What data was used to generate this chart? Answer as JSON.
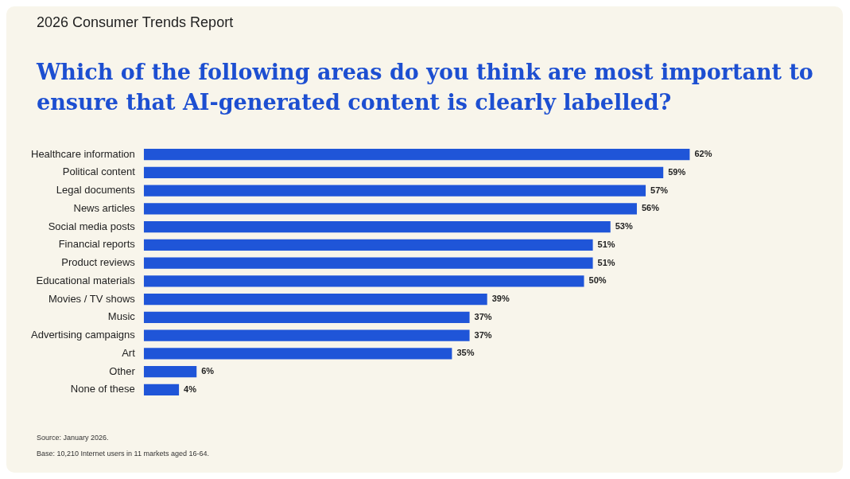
{
  "chart_data": {
    "type": "bar",
    "orientation": "horizontal",
    "title": "Which of the following areas do you think are most important to ensure that AI-generated content is clearly labelled?",
    "subtitle": "2026 Consumer Trends Report",
    "categories": [
      "Healthcare information",
      "Political content",
      "Legal documents",
      "News articles",
      "Social media posts",
      "Financial reports",
      "Product reviews",
      "Educational materials",
      "Movies / TV shows",
      "Music",
      "Advertising campaigns",
      "Art",
      "Other",
      "None of these"
    ],
    "values": [
      62,
      59,
      57,
      56,
      53,
      51,
      51,
      50,
      39,
      37,
      37,
      35,
      6,
      4
    ],
    "value_labels": [
      "62%",
      "59%",
      "57%",
      "56%",
      "53%",
      "51%",
      "51%",
      "50%",
      "39%",
      "37%",
      "37%",
      "35%",
      "6%",
      "4%"
    ],
    "color": "#1f55d8",
    "annotations": [
      "Source: January 2026.",
      "Base: 10,210 Internet users in 11 markets aged 16-64."
    ]
  }
}
